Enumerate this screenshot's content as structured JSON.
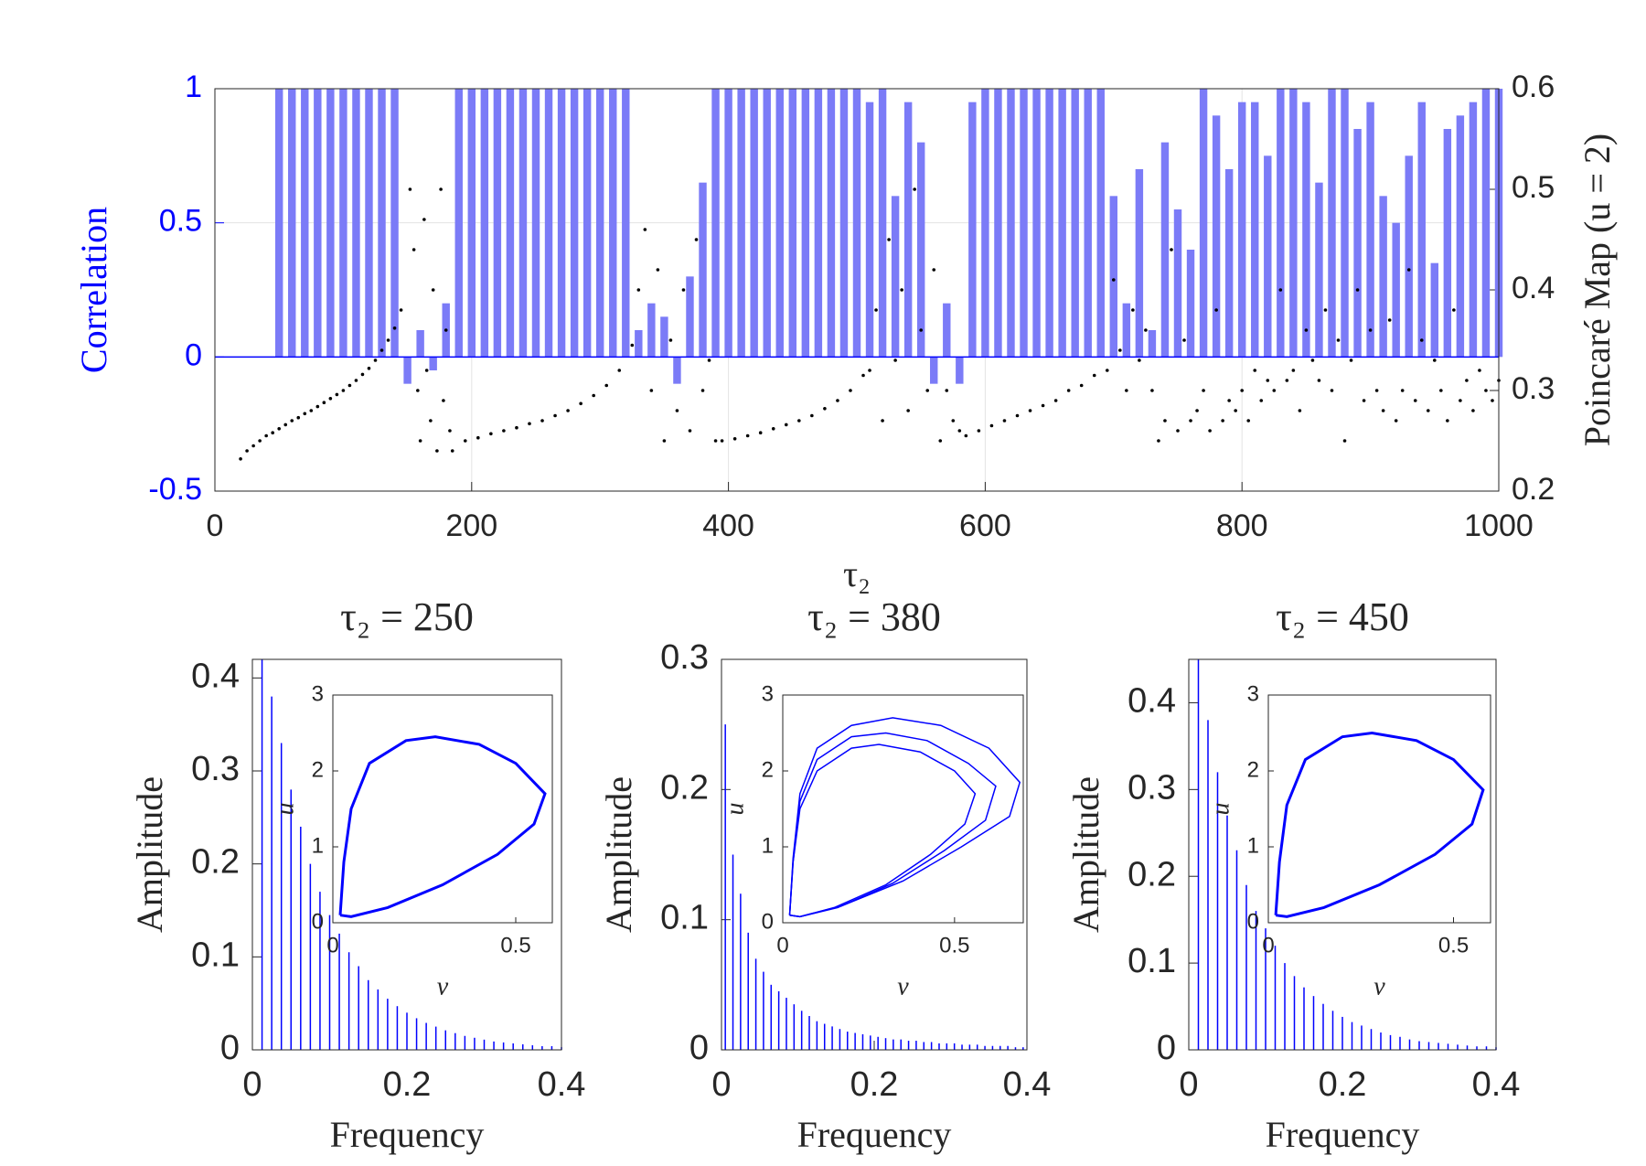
{
  "chart_data": [
    {
      "type": "bar",
      "xlabel": "τ₂",
      "ylabel": "Correlation",
      "y2label": "Poincaré Map (u = 2)",
      "xlim": [
        0,
        1000
      ],
      "xticks": [
        0,
        200,
        400,
        600,
        800,
        1000
      ],
      "ylim": [
        -0.5,
        1
      ],
      "yticks": [
        -0.5,
        0,
        0.5,
        1
      ],
      "y2lim": [
        0.2,
        0.6
      ],
      "y2ticks": [
        0.2,
        0.3,
        0.4,
        0.5,
        0.6
      ],
      "grid": true,
      "series": [
        {
          "type": "bar",
          "color": "#7b7bf7",
          "x": [
            50,
            60,
            70,
            80,
            90,
            100,
            110,
            120,
            130,
            140,
            150,
            160,
            170,
            180,
            190,
            200,
            210,
            220,
            230,
            240,
            250,
            260,
            270,
            280,
            290,
            300,
            310,
            320,
            330,
            340,
            350,
            360,
            370,
            380,
            390,
            400,
            410,
            420,
            430,
            440,
            450,
            460,
            470,
            480,
            490,
            500,
            510,
            520,
            530,
            540,
            550,
            560,
            570,
            580,
            590,
            600,
            610,
            620,
            630,
            640,
            650,
            660,
            670,
            680,
            690,
            700,
            710,
            720,
            730,
            740,
            750,
            760,
            770,
            780,
            790,
            800,
            810,
            820,
            830,
            840,
            850,
            860,
            870,
            880,
            890,
            900,
            910,
            920,
            930,
            940,
            950,
            960,
            970,
            980,
            990,
            1000
          ],
          "values": [
            1,
            1,
            1,
            1,
            1,
            1,
            1,
            1,
            1,
            1,
            -0.1,
            0.1,
            -0.05,
            0.2,
            1,
            1,
            1,
            1,
            1,
            1,
            1,
            1,
            1,
            1,
            1,
            1,
            1,
            1,
            0.1,
            0.2,
            0.15,
            -0.1,
            0.3,
            0.65,
            1,
            1,
            1,
            1,
            1,
            1,
            1,
            1,
            1,
            1,
            1,
            1,
            0.95,
            1,
            0.6,
            0.95,
            0.8,
            -0.1,
            0.2,
            -0.1,
            0.95,
            1,
            1,
            1,
            1,
            1,
            1,
            1,
            1,
            1,
            1,
            0.6,
            0.2,
            0.7,
            0.1,
            0.8,
            0.55,
            0.4,
            1,
            0.9,
            0.7,
            0.95,
            0.95,
            0.75,
            1,
            1,
            0.95,
            0.65,
            1,
            1,
            0.85,
            0.95,
            0.6,
            0.5,
            0.75,
            0.95,
            0.35,
            0.85,
            0.9,
            0.95,
            1,
            1
          ]
        },
        {
          "type": "scatter",
          "axis": "y2",
          "color": "#000000",
          "x": [
            20,
            25,
            30,
            35,
            40,
            45,
            50,
            55,
            60,
            65,
            70,
            75,
            80,
            85,
            90,
            95,
            100,
            105,
            110,
            115,
            120,
            125,
            130,
            135,
            140,
            145,
            152,
            155,
            158,
            160,
            163,
            165,
            168,
            170,
            173,
            176,
            178,
            180,
            183,
            185,
            195,
            205,
            215,
            225,
            235,
            245,
            255,
            265,
            275,
            285,
            295,
            305,
            315,
            325,
            330,
            335,
            340,
            345,
            350,
            355,
            360,
            365,
            370,
            375,
            380,
            385,
            390,
            395,
            405,
            415,
            425,
            435,
            445,
            455,
            465,
            475,
            485,
            495,
            505,
            510,
            515,
            520,
            525,
            530,
            535,
            540,
            545,
            550,
            555,
            560,
            565,
            570,
            575,
            580,
            585,
            595,
            605,
            615,
            625,
            635,
            645,
            655,
            665,
            675,
            685,
            695,
            700,
            705,
            710,
            715,
            720,
            725,
            730,
            735,
            740,
            745,
            750,
            755,
            760,
            765,
            770,
            775,
            780,
            785,
            790,
            795,
            800,
            805,
            810,
            815,
            820,
            825,
            830,
            835,
            840,
            845,
            850,
            855,
            860,
            865,
            870,
            875,
            880,
            885,
            890,
            895,
            900,
            905,
            910,
            915,
            920,
            925,
            930,
            935,
            940,
            945,
            950,
            955,
            960,
            965,
            970,
            975,
            980,
            985,
            990,
            995,
            1000
          ],
          "values": [
            0.232,
            0.24,
            0.245,
            0.25,
            0.255,
            0.258,
            0.262,
            0.266,
            0.27,
            0.273,
            0.277,
            0.28,
            0.284,
            0.288,
            0.292,
            0.296,
            0.3,
            0.305,
            0.31,
            0.316,
            0.322,
            0.33,
            0.34,
            0.35,
            0.362,
            0.38,
            0.5,
            0.44,
            0.3,
            0.25,
            0.47,
            0.32,
            0.27,
            0.4,
            0.24,
            0.5,
            0.29,
            0.36,
            0.26,
            0.24,
            0.25,
            0.253,
            0.257,
            0.26,
            0.263,
            0.267,
            0.27,
            0.275,
            0.28,
            0.287,
            0.295,
            0.305,
            0.32,
            0.345,
            0.4,
            0.46,
            0.3,
            0.42,
            0.25,
            0.35,
            0.28,
            0.4,
            0.26,
            0.45,
            0.3,
            0.33,
            0.25,
            0.25,
            0.252,
            0.255,
            0.258,
            0.262,
            0.266,
            0.27,
            0.275,
            0.282,
            0.29,
            0.3,
            0.315,
            0.32,
            0.38,
            0.27,
            0.45,
            0.33,
            0.4,
            0.28,
            0.5,
            0.36,
            0.3,
            0.42,
            0.25,
            0.3,
            0.27,
            0.26,
            0.255,
            0.26,
            0.265,
            0.27,
            0.275,
            0.28,
            0.285,
            0.29,
            0.3,
            0.305,
            0.315,
            0.32,
            0.41,
            0.34,
            0.3,
            0.38,
            0.33,
            0.36,
            0.3,
            0.25,
            0.27,
            0.44,
            0.26,
            0.35,
            0.27,
            0.28,
            0.3,
            0.26,
            0.38,
            0.27,
            0.29,
            0.28,
            0.3,
            0.27,
            0.32,
            0.29,
            0.31,
            0.3,
            0.4,
            0.31,
            0.32,
            0.28,
            0.36,
            0.33,
            0.31,
            0.38,
            0.3,
            0.35,
            0.25,
            0.33,
            0.4,
            0.29,
            0.36,
            0.3,
            0.28,
            0.37,
            0.27,
            0.3,
            0.42,
            0.29,
            0.35,
            0.28,
            0.33,
            0.3,
            0.27,
            0.38,
            0.29,
            0.31,
            0.28,
            0.32,
            0.3,
            0.29,
            0.31
          ]
        }
      ]
    },
    {
      "type": "stem",
      "title": "τ₂ = 250",
      "xlabel": "Frequency",
      "ylabel": "Amplitude",
      "color": "#0000ff",
      "xlim": [
        0,
        0.4
      ],
      "xticks": [
        0,
        0.2,
        0.4
      ],
      "ylim": [
        0,
        0.42
      ],
      "yticks": [
        0,
        0.1,
        0.2,
        0.3,
        0.4
      ],
      "x": [
        0.0125,
        0.025,
        0.0375,
        0.05,
        0.0625,
        0.075,
        0.0875,
        0.1,
        0.1125,
        0.125,
        0.1375,
        0.15,
        0.1625,
        0.175,
        0.1875,
        0.2,
        0.2125,
        0.225,
        0.2375,
        0.25,
        0.2625,
        0.275,
        0.2875,
        0.3,
        0.3125,
        0.325,
        0.3375,
        0.35,
        0.3625,
        0.375,
        0.3875,
        0.4
      ],
      "values": [
        0.42,
        0.38,
        0.33,
        0.28,
        0.24,
        0.2,
        0.17,
        0.145,
        0.125,
        0.105,
        0.09,
        0.075,
        0.065,
        0.055,
        0.047,
        0.04,
        0.034,
        0.029,
        0.025,
        0.021,
        0.018,
        0.015,
        0.013,
        0.011,
        0.009,
        0.008,
        0.007,
        0.006,
        0.005,
        0.004,
        0.004,
        0.003
      ]
    },
    {
      "type": "stem",
      "title": "τ₂ = 380",
      "xlabel": "Frequency",
      "ylabel": "Amplitude",
      "color": "#0000ff",
      "xlim": [
        0,
        0.4
      ],
      "xticks": [
        0,
        0.2,
        0.4
      ],
      "ylim": [
        0,
        0.3
      ],
      "yticks": [
        0,
        0.1,
        0.2,
        0.3
      ],
      "x": [
        0.005,
        0.015,
        0.025,
        0.035,
        0.045,
        0.055,
        0.065,
        0.075,
        0.085,
        0.095,
        0.105,
        0.115,
        0.125,
        0.135,
        0.145,
        0.155,
        0.165,
        0.175,
        0.185,
        0.195,
        0.205,
        0.215,
        0.225,
        0.235,
        0.245,
        0.255,
        0.265,
        0.275,
        0.285,
        0.295,
        0.305,
        0.315,
        0.325,
        0.335,
        0.345,
        0.355,
        0.365,
        0.375,
        0.385,
        0.395
      ],
      "values": [
        0.25,
        0.15,
        0.12,
        0.09,
        0.07,
        0.06,
        0.05,
        0.045,
        0.04,
        0.035,
        0.03,
        0.026,
        0.022,
        0.02,
        0.018,
        0.016,
        0.014,
        0.013,
        0.012,
        0.011,
        0.01,
        0.009,
        0.008,
        0.008,
        0.007,
        0.007,
        0.006,
        0.006,
        0.005,
        0.005,
        0.005,
        0.004,
        0.004,
        0.004,
        0.003,
        0.003,
        0.003,
        0.003,
        0.002,
        0.002
      ]
    },
    {
      "type": "stem",
      "title": "τ₂ = 450",
      "xlabel": "Frequency",
      "ylabel": "Amplitude",
      "color": "#0000ff",
      "xlim": [
        0,
        0.4
      ],
      "xticks": [
        0,
        0.2,
        0.4
      ],
      "ylim": [
        0,
        0.45
      ],
      "yticks": [
        0,
        0.1,
        0.2,
        0.3,
        0.4
      ],
      "x": [
        0.0125,
        0.025,
        0.0375,
        0.05,
        0.0625,
        0.075,
        0.0875,
        0.1,
        0.1125,
        0.125,
        0.1375,
        0.15,
        0.1625,
        0.175,
        0.1875,
        0.2,
        0.2125,
        0.225,
        0.2375,
        0.25,
        0.2625,
        0.275,
        0.2875,
        0.3,
        0.3125,
        0.325,
        0.3375,
        0.35,
        0.3625,
        0.375,
        0.3875,
        0.4
      ],
      "values": [
        0.45,
        0.38,
        0.32,
        0.27,
        0.23,
        0.19,
        0.16,
        0.14,
        0.12,
        0.1,
        0.085,
        0.072,
        0.062,
        0.053,
        0.045,
        0.038,
        0.032,
        0.028,
        0.024,
        0.02,
        0.017,
        0.015,
        0.012,
        0.01,
        0.009,
        0.008,
        0.007,
        0.006,
        0.005,
        0.004,
        0.004,
        0.003
      ]
    },
    {
      "type": "line",
      "xlabel": "v",
      "ylabel": "u",
      "xlim": [
        0,
        0.6
      ],
      "xticks": [
        0,
        0.5
      ],
      "ylim": [
        0,
        3
      ],
      "yticks": [
        0,
        1,
        2,
        3
      ],
      "series": [
        {
          "color": "#0000ff",
          "x": [
            0.02,
            0.03,
            0.05,
            0.1,
            0.2,
            0.28,
            0.4,
            0.5,
            0.58,
            0.55,
            0.45,
            0.3,
            0.15,
            0.05,
            0.02
          ],
          "values": [
            0.1,
            0.8,
            1.5,
            2.1,
            2.4,
            2.45,
            2.35,
            2.1,
            1.7,
            1.3,
            0.9,
            0.5,
            0.2,
            0.08,
            0.1
          ]
        }
      ]
    },
    {
      "type": "line",
      "xlabel": "v",
      "ylabel": "u",
      "xlim": [
        0,
        0.7
      ],
      "xticks": [
        0,
        0.5
      ],
      "ylim": [
        0,
        3
      ],
      "yticks": [
        0,
        1,
        2,
        3
      ],
      "series": [
        {
          "color": "#0000ff",
          "x": [
            0.02,
            0.03,
            0.05,
            0.1,
            0.2,
            0.28,
            0.4,
            0.5,
            0.56,
            0.53,
            0.43,
            0.3,
            0.15,
            0.05,
            0.02
          ],
          "values": [
            0.1,
            0.8,
            1.5,
            2.0,
            2.3,
            2.35,
            2.25,
            2.0,
            1.7,
            1.3,
            0.9,
            0.5,
            0.2,
            0.08,
            0.1
          ]
        },
        {
          "color": "#0000ff",
          "x": [
            0.02,
            0.03,
            0.05,
            0.1,
            0.2,
            0.3,
            0.42,
            0.54,
            0.62,
            0.59,
            0.47,
            0.32,
            0.16,
            0.05,
            0.02
          ],
          "values": [
            0.1,
            0.8,
            1.6,
            2.15,
            2.45,
            2.5,
            2.4,
            2.1,
            1.8,
            1.35,
            0.95,
            0.52,
            0.2,
            0.08,
            0.1
          ]
        },
        {
          "color": "#0000ff",
          "x": [
            0.02,
            0.03,
            0.05,
            0.1,
            0.2,
            0.32,
            0.46,
            0.6,
            0.69,
            0.66,
            0.52,
            0.35,
            0.17,
            0.05,
            0.02
          ],
          "values": [
            0.1,
            0.85,
            1.7,
            2.3,
            2.6,
            2.7,
            2.6,
            2.3,
            1.85,
            1.4,
            1.0,
            0.55,
            0.22,
            0.08,
            0.1
          ]
        }
      ]
    },
    {
      "type": "line",
      "xlabel": "v",
      "ylabel": "u",
      "xlim": [
        0,
        0.6
      ],
      "xticks": [
        0,
        0.5
      ],
      "ylim": [
        0,
        3
      ],
      "yticks": [
        0,
        1,
        2,
        3
      ],
      "series": [
        {
          "color": "#0000ff",
          "x": [
            0.02,
            0.03,
            0.05,
            0.1,
            0.2,
            0.28,
            0.4,
            0.5,
            0.58,
            0.55,
            0.45,
            0.3,
            0.15,
            0.05,
            0.02
          ],
          "values": [
            0.1,
            0.8,
            1.55,
            2.15,
            2.45,
            2.5,
            2.4,
            2.15,
            1.75,
            1.3,
            0.9,
            0.5,
            0.2,
            0.08,
            0.1
          ]
        }
      ]
    }
  ]
}
